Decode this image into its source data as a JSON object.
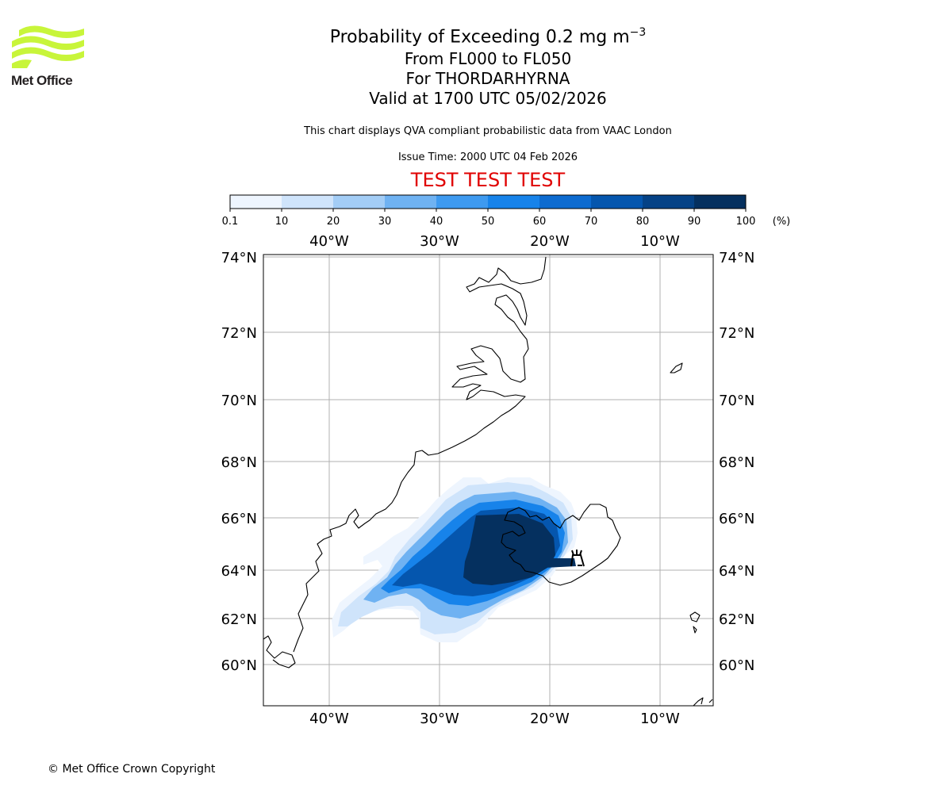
{
  "header": {
    "title_main": "Probability of Exceeding 0.2 mg m",
    "title_superscript": "−3",
    "flight_levels": "From FL000 to FL050",
    "volcano": "For THORDARHYRNA",
    "valid_time": "Valid at 1700 UTC 05/02/2026",
    "description": "This chart displays QVA compliant probabilistic data from VAAC London",
    "issue_time": "Issue Time: 2000 UTC 04 Feb 2026",
    "test_banner": "TEST TEST TEST"
  },
  "logo": {
    "text": "Met Office",
    "color": "#c8f53a"
  },
  "colorbar": {
    "unit_label": "(%)",
    "ticks": [
      "0.1",
      "10",
      "20",
      "30",
      "40",
      "50",
      "60",
      "70",
      "80",
      "90",
      "100"
    ],
    "colors": [
      "#eef5fe",
      "#cfe4fb",
      "#a3cdf6",
      "#6fb2f2",
      "#3e9af0",
      "#1783ea",
      "#0d6bd0",
      "#0556ae",
      "#054286",
      "#05305f"
    ]
  },
  "map": {
    "lon_labels_top": [
      "40°W",
      "30°W",
      "20°W",
      "10°W"
    ],
    "lon_labels_bottom": [
      "40°W",
      "30°W",
      "20°W",
      "10°W"
    ],
    "lat_labels_left": [
      "74°N",
      "72°N",
      "70°N",
      "68°N",
      "66°N",
      "64°N",
      "62°N",
      "60°N"
    ],
    "lat_labels_right": [
      "74°N",
      "72°N",
      "70°N",
      "68°N",
      "66°N",
      "64°N",
      "62°N",
      "60°N"
    ],
    "volcano_symbol": "volcano-icon",
    "ash_probability_bands_percent": [
      10,
      30,
      50,
      70,
      90,
      100
    ]
  },
  "footer": {
    "copyright": "© Met Office Crown Copyright"
  }
}
